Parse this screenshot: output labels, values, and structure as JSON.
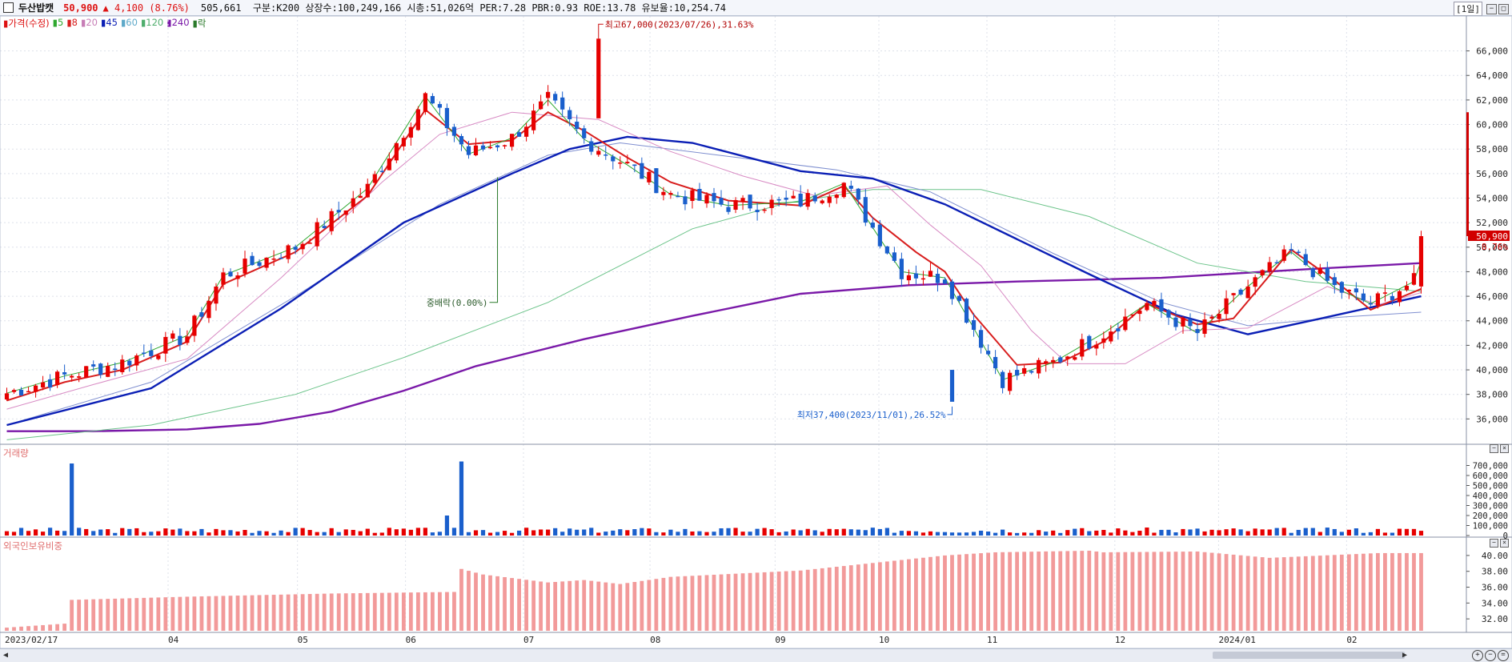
{
  "header": {
    "name": "두산밥캣",
    "price": "50,900",
    "change": "▲ 4,100 (8.76%)",
    "info": "505,661  구분:K200 상장수:100,249,166 시총:51,026억 PER:7.28 PBR:0.93 ROE:13.78 유보율:10,254.74",
    "period": "[1일]"
  },
  "legend": {
    "price": "가격(수정)",
    "ma": [
      "5",
      "8",
      "20",
      "45",
      "60",
      "120",
      "240"
    ],
    "rak": "락"
  },
  "colors": {
    "up": "#e60000",
    "down": "#1a5fcc",
    "ma5": "#2fa82f",
    "ma8": "#d81e1e",
    "ma20": "#d88bc4",
    "ma45": "#0b1fb5",
    "ma60": "#7f8fd0",
    "ma120": "#6cc48a",
    "ma240": "#7a19a8",
    "foreign_bar": "#f29a9a"
  },
  "chart_data": [
    {
      "type": "candlestick",
      "title": "가격(수정)",
      "ylim": [
        34000,
        67800
      ],
      "yticks": [
        "36,000",
        "38,000",
        "40,000",
        "42,000",
        "44,000",
        "46,000",
        "48,000",
        "50,000",
        "52,000",
        "54,000",
        "56,000",
        "58,000",
        "60,000",
        "62,000",
        "64,000",
        "66,000"
      ],
      "x_labels": [
        "2023/02/17",
        "04",
        "05",
        "06",
        "07",
        "08",
        "09",
        "10",
        "11",
        "12",
        "2024/01",
        "02"
      ],
      "annotations": {
        "high": "최고67,000(2023/07/26),31.63%",
        "low": "최저37,400(2023/11/01),26.52%",
        "rak": "중배락(0.00%)"
      },
      "last_price_label": "50,900",
      "last_change_label": "8.76%",
      "ma_series": {
        "ma240": [
          [
            0,
            35000
          ],
          [
            12,
            35000
          ],
          [
            25,
            35150
          ],
          [
            35,
            35600
          ],
          [
            45,
            36600
          ],
          [
            55,
            38300
          ],
          [
            65,
            40300
          ],
          [
            80,
            42500
          ],
          [
            95,
            44400
          ],
          [
            110,
            46200
          ],
          [
            125,
            46900
          ],
          [
            140,
            47200
          ],
          [
            160,
            47500
          ],
          [
            180,
            48200
          ],
          [
            196,
            48700
          ]
        ],
        "ma120": [
          [
            0,
            34300
          ],
          [
            20,
            35500
          ],
          [
            40,
            38000
          ],
          [
            55,
            41000
          ],
          [
            75,
            45500
          ],
          [
            85,
            48500
          ],
          [
            95,
            51500
          ],
          [
            108,
            53600
          ],
          [
            120,
            54700
          ],
          [
            135,
            54700
          ],
          [
            150,
            52500
          ],
          [
            165,
            48700
          ],
          [
            180,
            47200
          ],
          [
            196,
            46400
          ]
        ],
        "ma60": [
          [
            0,
            35500
          ],
          [
            20,
            39000
          ],
          [
            40,
            46000
          ],
          [
            60,
            53500
          ],
          [
            75,
            57500
          ],
          [
            85,
            58500
          ],
          [
            100,
            57400
          ],
          [
            115,
            56300
          ],
          [
            128,
            54500
          ],
          [
            145,
            49500
          ],
          [
            160,
            45500
          ],
          [
            172,
            43600
          ],
          [
            185,
            44300
          ],
          [
            196,
            44700
          ]
        ],
        "ma45": [
          [
            0,
            35500
          ],
          [
            20,
            38500
          ],
          [
            38,
            45000
          ],
          [
            55,
            52000
          ],
          [
            70,
            56000
          ],
          [
            78,
            58000
          ],
          [
            86,
            59000
          ],
          [
            95,
            58500
          ],
          [
            110,
            56200
          ],
          [
            120,
            55600
          ],
          [
            130,
            53500
          ],
          [
            150,
            47800
          ],
          [
            162,
            44500
          ],
          [
            172,
            42900
          ],
          [
            183,
            44300
          ],
          [
            196,
            46000
          ]
        ],
        "ma20": [
          [
            0,
            36800
          ],
          [
            12,
            38800
          ],
          [
            25,
            40900
          ],
          [
            38,
            47500
          ],
          [
            52,
            55300
          ],
          [
            60,
            59200
          ],
          [
            70,
            61000
          ],
          [
            82,
            60400
          ],
          [
            92,
            57800
          ],
          [
            102,
            55800
          ],
          [
            112,
            54200
          ],
          [
            122,
            55000
          ],
          [
            128,
            51800
          ],
          [
            135,
            48500
          ],
          [
            142,
            43200
          ],
          [
            147,
            40500
          ],
          [
            155,
            40500
          ],
          [
            163,
            43200
          ],
          [
            172,
            43400
          ],
          [
            183,
            46800
          ],
          [
            190,
            45300
          ],
          [
            196,
            46300
          ]
        ],
        "ma8": [
          [
            0,
            37500
          ],
          [
            8,
            39000
          ],
          [
            16,
            40000
          ],
          [
            25,
            42300
          ],
          [
            30,
            47000
          ],
          [
            40,
            49600
          ],
          [
            50,
            54200
          ],
          [
            58,
            61200
          ],
          [
            64,
            58400
          ],
          [
            70,
            58700
          ],
          [
            75,
            61000
          ],
          [
            80,
            59500
          ],
          [
            86,
            57300
          ],
          [
            92,
            55300
          ],
          [
            100,
            53800
          ],
          [
            110,
            53400
          ],
          [
            116,
            55000
          ],
          [
            120,
            52400
          ],
          [
            126,
            49600
          ],
          [
            130,
            48000
          ],
          [
            134,
            44500
          ],
          [
            140,
            40400
          ],
          [
            146,
            40600
          ],
          [
            152,
            42300
          ],
          [
            158,
            45400
          ],
          [
            165,
            43700
          ],
          [
            170,
            44200
          ],
          [
            178,
            49800
          ],
          [
            184,
            47300
          ],
          [
            189,
            44900
          ],
          [
            196,
            46600
          ]
        ],
        "ma5": [
          [
            0,
            38100
          ],
          [
            8,
            39500
          ],
          [
            16,
            40600
          ],
          [
            25,
            42800
          ],
          [
            30,
            47700
          ],
          [
            40,
            50000
          ],
          [
            50,
            54800
          ],
          [
            58,
            62300
          ],
          [
            64,
            57600
          ],
          [
            70,
            58900
          ],
          [
            75,
            62000
          ],
          [
            80,
            58800
          ],
          [
            86,
            56700
          ],
          [
            92,
            54300
          ],
          [
            100,
            53400
          ],
          [
            110,
            53700
          ],
          [
            116,
            55200
          ],
          [
            120,
            51600
          ],
          [
            124,
            48000
          ],
          [
            130,
            47500
          ],
          [
            134,
            43400
          ],
          [
            138,
            39200
          ],
          [
            145,
            40600
          ],
          [
            152,
            43000
          ],
          [
            158,
            45400
          ],
          [
            165,
            43000
          ],
          [
            172,
            46800
          ],
          [
            178,
            49600
          ],
          [
            184,
            46700
          ],
          [
            189,
            45400
          ],
          [
            195,
            47200
          ],
          [
            196,
            48900
          ]
        ]
      }
    },
    {
      "type": "bar",
      "title": "거래량",
      "ylim": [
        0,
        760000
      ],
      "yticks": [
        "700,000",
        "600,000",
        "500,000",
        "400,000",
        "300,000",
        "200,000",
        "100,000",
        "0"
      ],
      "spikes": [
        {
          "x": 9,
          "value": 720000
        },
        {
          "x": 63,
          "value": 740000
        }
      ]
    },
    {
      "type": "bar",
      "title": "외국인보유비중",
      "ylim": [
        30.5,
        41
      ],
      "yticks": [
        "40.00",
        "38.00",
        "36.00",
        "34.00",
        "32.00"
      ],
      "levels": [
        [
          0,
          30.9
        ],
        [
          8,
          31.4
        ],
        [
          9,
          34.4
        ],
        [
          25,
          34.8
        ],
        [
          45,
          35.2
        ],
        [
          62,
          35.4
        ],
        [
          63,
          38.3
        ],
        [
          66,
          37.6
        ],
        [
          75,
          36.6
        ],
        [
          80,
          36.9
        ],
        [
          85,
          36.4
        ],
        [
          92,
          37.3
        ],
        [
          110,
          38.1
        ],
        [
          130,
          40.0
        ],
        [
          137,
          40.4
        ],
        [
          150,
          40.6
        ],
        [
          152,
          40.4
        ],
        [
          165,
          40.5
        ],
        [
          175,
          39.7
        ],
        [
          190,
          40.3
        ],
        [
          196,
          40.3
        ]
      ]
    }
  ]
}
